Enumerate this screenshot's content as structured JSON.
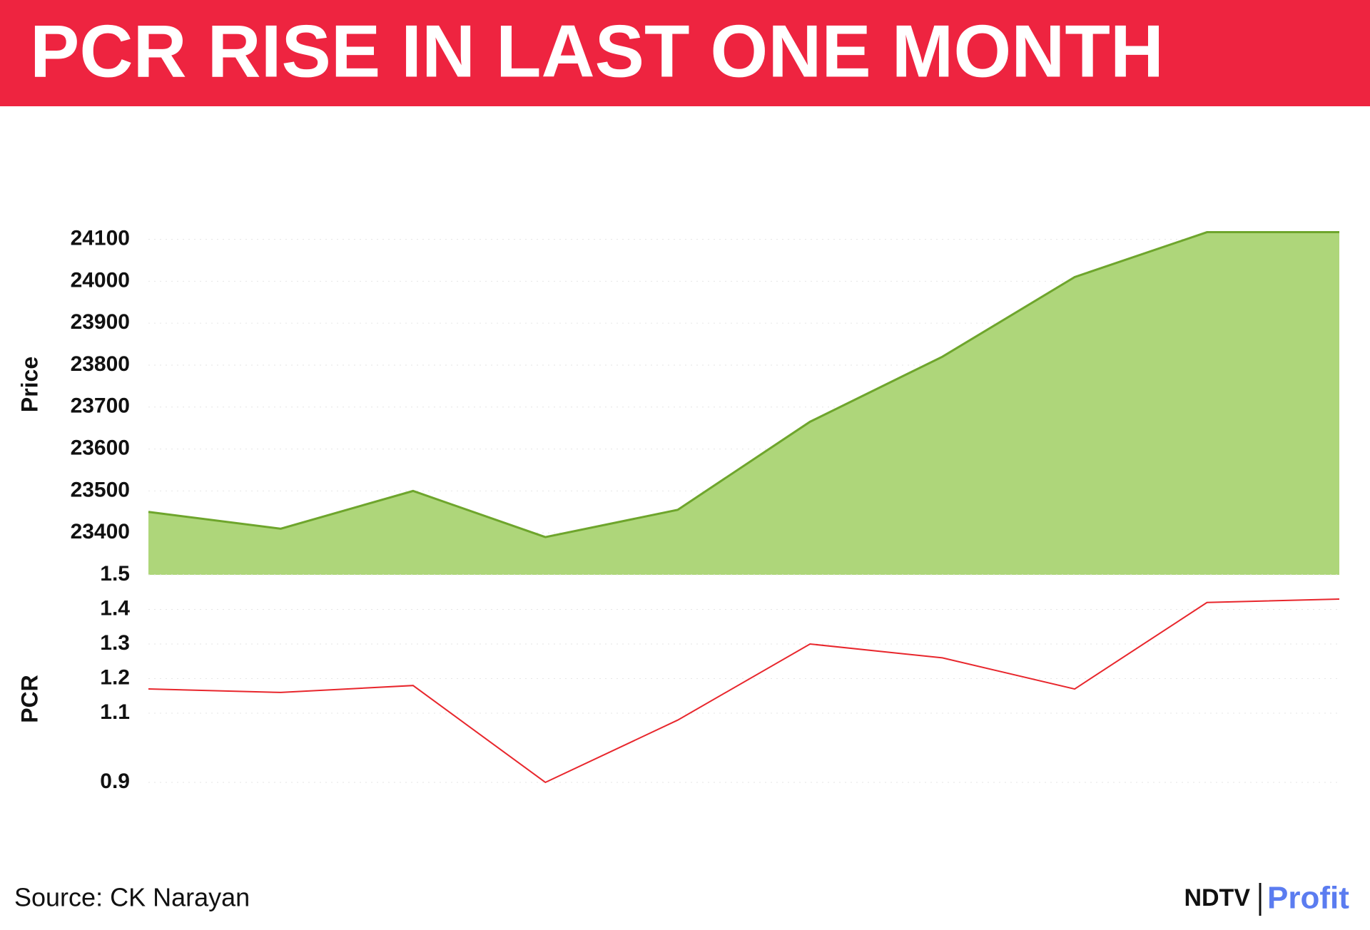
{
  "chart_data": [
    {
      "type": "area",
      "title": "PCR RISE IN LAST ONE MONTH",
      "y_label": "Price",
      "categories": [
        null,
        null,
        null,
        null,
        null,
        null,
        null,
        null,
        null,
        null
      ],
      "values": [
        23450,
        23410,
        23500,
        23390,
        23455,
        23665,
        23820,
        24010,
        24117,
        24117
      ],
      "color": "#6ea52c",
      "fill": "#aed67a",
      "ylim": [
        23300,
        24140
      ],
      "yticks": [
        23400,
        23500,
        23600,
        23700,
        23800,
        23900,
        24000,
        24100
      ],
      "grid": true
    },
    {
      "type": "line",
      "y_label": "PCR",
      "categories": [
        null,
        null,
        null,
        null,
        null,
        null,
        null,
        null,
        null,
        null
      ],
      "values": [
        1.17,
        1.16,
        1.18,
        0.9,
        1.08,
        1.3,
        1.26,
        1.17,
        1.42,
        1.43
      ],
      "color": "#e8262c",
      "ylim": [
        0.9,
        1.5
      ],
      "yticks": [
        0.9,
        1.1,
        1.2,
        1.3,
        1.4,
        1.5
      ],
      "grid": true,
      "source": "Source: CK Narayan"
    }
  ],
  "brand": {
    "left": "NDTV",
    "right": "Profit"
  }
}
